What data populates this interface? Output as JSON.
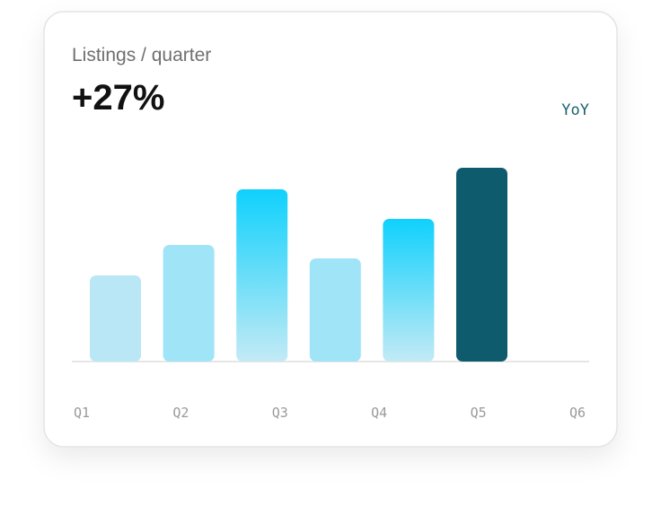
{
  "chart_data": {
    "type": "bar",
    "title": "Listings / quarter",
    "kpi": "+27%",
    "badge": "YoY",
    "categories": [
      "Q1",
      "Q2",
      "Q3",
      "Q4",
      "Q5",
      "Q6"
    ],
    "values": [
      96,
      130,
      192,
      115,
      159,
      216
    ],
    "colors": [
      "#b9e7f5",
      "#a0e4f8",
      [
        "#0fd1fc",
        "#c3eaf5"
      ],
      "#a0e4f8",
      [
        "#0fd1fc",
        "#c3eaf5"
      ],
      "#0e5b6e"
    ],
    "ylim": [
      0,
      216
    ]
  }
}
